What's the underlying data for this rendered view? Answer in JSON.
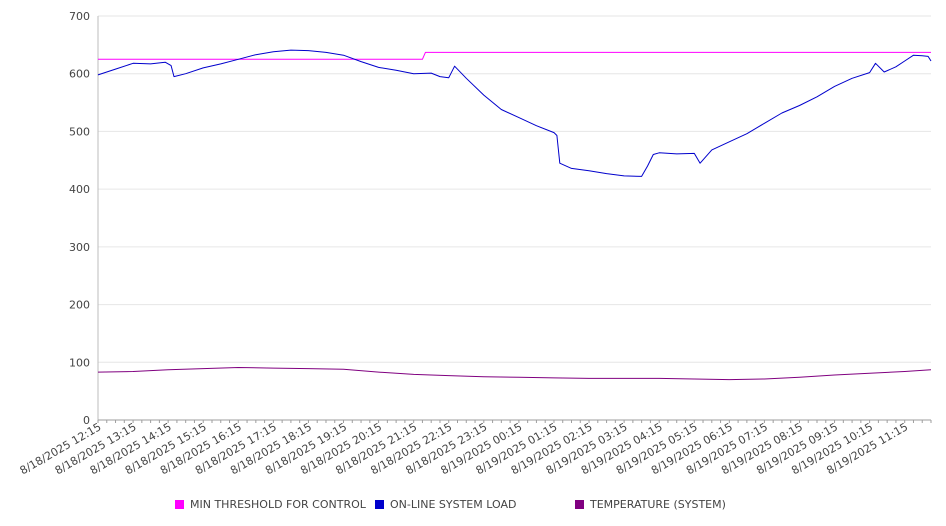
{
  "chart_data": {
    "type": "line",
    "title": "",
    "xlabel": "",
    "ylabel": "",
    "ylim": [
      0,
      700
    ],
    "yticks": [
      0,
      100,
      200,
      300,
      400,
      500,
      600,
      700
    ],
    "xlim": [
      "8/18/2025 12:15",
      "8/19/2025 12:00"
    ],
    "x_tick_labels": [
      "8/18/2025 12:15",
      "8/18/2025 13:15",
      "8/18/2025 14:15",
      "8/18/2025 15:15",
      "8/18/2025 16:15",
      "8/18/2025 17:15",
      "8/18/2025 18:15",
      "8/18/2025 19:15",
      "8/18/2025 20:15",
      "8/18/2025 21:15",
      "8/18/2025 22:15",
      "8/18/2025 23:15",
      "8/19/2025 00:15",
      "8/19/2025 01:15",
      "8/19/2025 02:15",
      "8/19/2025 03:15",
      "8/19/2025 04:15",
      "8/19/2025 05:15",
      "8/19/2025 06:15",
      "8/19/2025 07:15",
      "8/19/2025 08:15",
      "8/19/2025 09:15",
      "8/19/2025 10:15",
      "8/19/2025 11:15"
    ],
    "grid": "horizontal",
    "legend_position": "bottom",
    "series": [
      {
        "name": "MIN THRESHOLD FOR CONTROL",
        "color": "#ff00ff",
        "points": [
          [
            "8/18/2025 12:15",
            625
          ],
          [
            "8/18/2025 21:30",
            625
          ],
          [
            "8/18/2025 21:35",
            637
          ],
          [
            "8/19/2025 12:00",
            637
          ]
        ]
      },
      {
        "name": "ON-LINE SYSTEM LOAD",
        "color": "#0000cc",
        "points": [
          [
            "8/18/2025 12:15",
            598
          ],
          [
            "8/18/2025 12:45",
            608
          ],
          [
            "8/18/2025 13:15",
            618
          ],
          [
            "8/18/2025 13:45",
            617
          ],
          [
            "8/18/2025 14:10",
            620
          ],
          [
            "8/18/2025 14:20",
            614
          ],
          [
            "8/18/2025 14:25",
            595
          ],
          [
            "8/18/2025 14:45",
            600
          ],
          [
            "8/18/2025 15:15",
            610
          ],
          [
            "8/18/2025 15:45",
            617
          ],
          [
            "8/18/2025 16:15",
            625
          ],
          [
            "8/18/2025 16:45",
            633
          ],
          [
            "8/18/2025 17:15",
            638
          ],
          [
            "8/18/2025 17:45",
            641
          ],
          [
            "8/18/2025 18:15",
            640
          ],
          [
            "8/18/2025 18:45",
            637
          ],
          [
            "8/18/2025 19:15",
            632
          ],
          [
            "8/18/2025 19:45",
            621
          ],
          [
            "8/18/2025 20:15",
            611
          ],
          [
            "8/18/2025 20:45",
            606
          ],
          [
            "8/18/2025 21:15",
            600
          ],
          [
            "8/18/2025 21:45",
            601
          ],
          [
            "8/18/2025 22:00",
            595
          ],
          [
            "8/18/2025 22:15",
            593
          ],
          [
            "8/18/2025 22:25",
            613
          ],
          [
            "8/18/2025 22:45",
            592
          ],
          [
            "8/18/2025 23:15",
            563
          ],
          [
            "8/18/2025 23:45",
            538
          ],
          [
            "8/19/2025 00:15",
            524
          ],
          [
            "8/19/2025 00:45",
            510
          ],
          [
            "8/19/2025 01:15",
            498
          ],
          [
            "8/19/2025 01:20",
            493
          ],
          [
            "8/19/2025 01:25",
            445
          ],
          [
            "8/19/2025 01:45",
            436
          ],
          [
            "8/19/2025 02:15",
            432
          ],
          [
            "8/19/2025 02:45",
            427
          ],
          [
            "8/19/2025 03:15",
            423
          ],
          [
            "8/19/2025 03:45",
            422
          ],
          [
            "8/19/2025 03:55",
            440
          ],
          [
            "8/19/2025 04:05",
            460
          ],
          [
            "8/19/2025 04:15",
            463
          ],
          [
            "8/19/2025 04:45",
            461
          ],
          [
            "8/19/2025 05:15",
            462
          ],
          [
            "8/19/2025 05:25",
            445
          ],
          [
            "8/19/2025 05:45",
            468
          ],
          [
            "8/19/2025 06:15",
            482
          ],
          [
            "8/19/2025 06:45",
            496
          ],
          [
            "8/19/2025 07:15",
            514
          ],
          [
            "8/19/2025 07:45",
            532
          ],
          [
            "8/19/2025 08:15",
            545
          ],
          [
            "8/19/2025 08:45",
            560
          ],
          [
            "8/19/2025 09:15",
            578
          ],
          [
            "8/19/2025 09:45",
            592
          ],
          [
            "8/19/2025 10:15",
            602
          ],
          [
            "8/19/2025 10:25",
            618
          ],
          [
            "8/19/2025 10:40",
            603
          ],
          [
            "8/19/2025 11:00",
            612
          ],
          [
            "8/19/2025 11:15",
            622
          ],
          [
            "8/19/2025 11:30",
            632
          ],
          [
            "8/19/2025 11:45",
            631
          ],
          [
            "8/19/2025 11:55",
            630
          ],
          [
            "8/19/2025 12:00",
            622
          ]
        ]
      },
      {
        "name": "TEMPERATURE (SYSTEM)",
        "color": "#800080",
        "points": [
          [
            "8/18/2025 12:15",
            83
          ],
          [
            "8/18/2025 13:15",
            84
          ],
          [
            "8/18/2025 14:15",
            87
          ],
          [
            "8/18/2025 15:15",
            89
          ],
          [
            "8/18/2025 16:15",
            91
          ],
          [
            "8/18/2025 17:15",
            90
          ],
          [
            "8/18/2025 18:15",
            89
          ],
          [
            "8/18/2025 19:15",
            88
          ],
          [
            "8/18/2025 20:15",
            83
          ],
          [
            "8/18/2025 21:15",
            79
          ],
          [
            "8/18/2025 22:15",
            77
          ],
          [
            "8/18/2025 23:15",
            75
          ],
          [
            "8/19/2025 00:15",
            74
          ],
          [
            "8/19/2025 01:15",
            73
          ],
          [
            "8/19/2025 02:15",
            72
          ],
          [
            "8/19/2025 03:15",
            72
          ],
          [
            "8/19/2025 04:15",
            72
          ],
          [
            "8/19/2025 05:15",
            71
          ],
          [
            "8/19/2025 06:15",
            70
          ],
          [
            "8/19/2025 07:15",
            71
          ],
          [
            "8/19/2025 08:15",
            74
          ],
          [
            "8/19/2025 09:15",
            78
          ],
          [
            "8/19/2025 10:15",
            81
          ],
          [
            "8/19/2025 11:15",
            84
          ],
          [
            "8/19/2025 12:00",
            87
          ]
        ]
      }
    ]
  }
}
